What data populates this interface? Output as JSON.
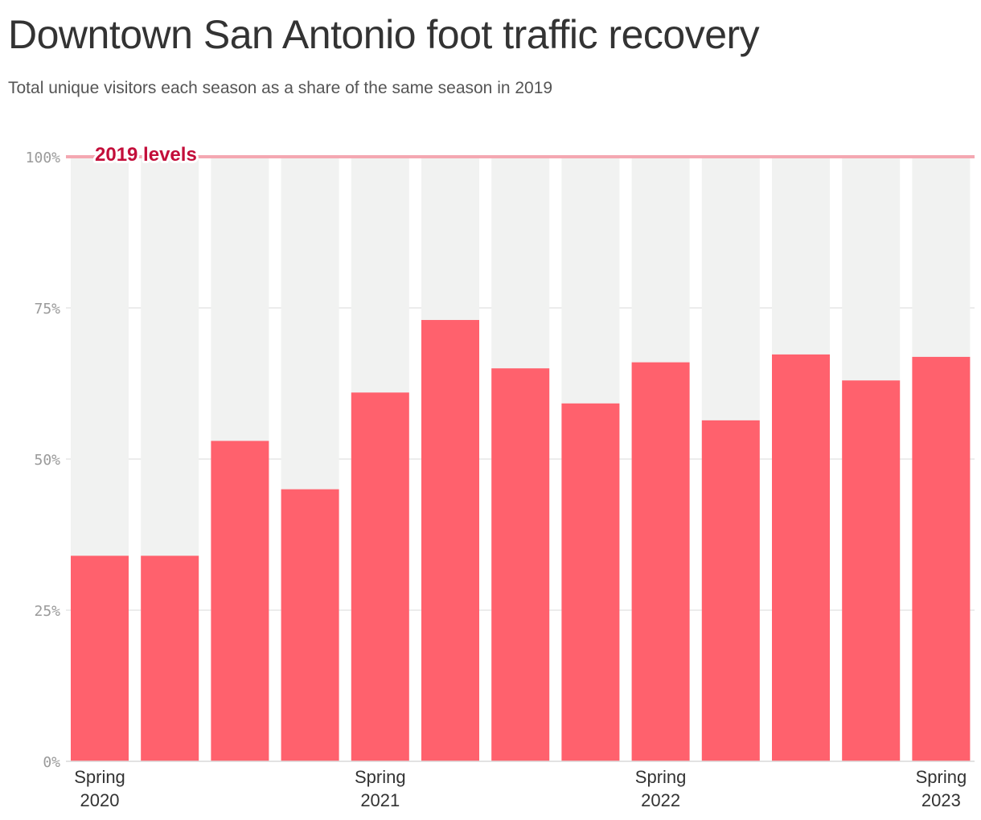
{
  "title": "Downtown San Antonio foot traffic recovery",
  "subtitle": "Total unique visitors each season as a share of the same season in 2019",
  "colors": {
    "bar": "#ff616d",
    "background_bar": "#f1f2f1",
    "reference_line": "#f4a8b2",
    "reference_label": "#c30e3a",
    "gridline": "#e6e6e6",
    "tick_label": "#9a9a9a"
  },
  "chart_data": {
    "type": "bar",
    "title": "Downtown San Antonio foot traffic recovery",
    "subtitle": "Total unique visitors each season as a share of the same season in 2019",
    "categories": [
      "Spring 2020",
      "",
      "",
      "",
      "Spring 2021",
      "",
      "",
      "",
      "Spring 2022",
      "",
      "",
      "",
      "Spring 2023"
    ],
    "x_tick_labels": [
      {
        "index": 0,
        "line1": "Spring",
        "line2": "2020"
      },
      {
        "index": 4,
        "line1": "Spring",
        "line2": "2021"
      },
      {
        "index": 8,
        "line1": "Spring",
        "line2": "2022"
      },
      {
        "index": 12,
        "line1": "Spring",
        "line2": "2023"
      }
    ],
    "values": [
      34,
      34,
      53,
      45,
      61,
      73,
      65,
      59.2,
      66,
      56.4,
      67.3,
      63,
      66.9
    ],
    "background_value": 100,
    "ylim": [
      0,
      100
    ],
    "y_ticks": [
      0,
      25,
      50,
      75,
      100
    ],
    "y_tick_labels": [
      "0%",
      "25%",
      "50%",
      "75%",
      "100%"
    ],
    "xlabel": "",
    "ylabel": "",
    "grid": true,
    "reference_line": {
      "value": 100,
      "label": "2019 levels"
    }
  }
}
